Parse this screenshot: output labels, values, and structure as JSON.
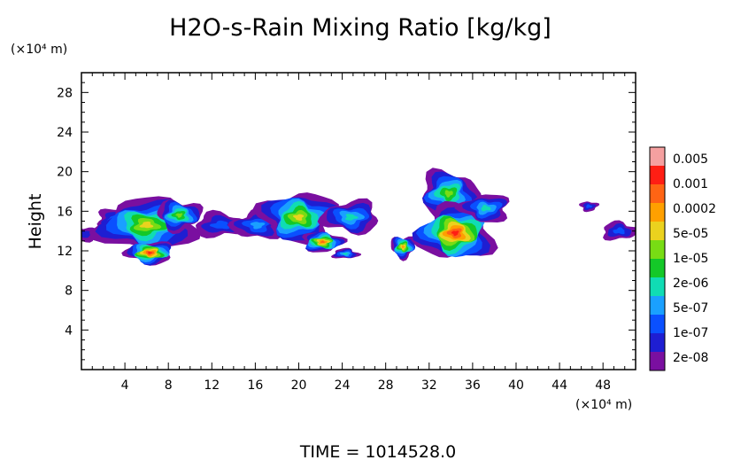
{
  "chart_data": {
    "type": "heatmap",
    "title": "H2O-s-Rain Mixing Ratio [kg/kg]",
    "ylabel": "Height",
    "x_unit": "(×10⁴ m)",
    "y_unit": "(×10⁴ m)",
    "xlim": [
      0,
      51
    ],
    "ylim": [
      0,
      30
    ],
    "x_ticks": [
      4,
      8,
      12,
      16,
      20,
      24,
      28,
      32,
      36,
      40,
      44,
      48
    ],
    "y_ticks": [
      4,
      8,
      12,
      16,
      20,
      24,
      28
    ],
    "footer": "TIME = 1014528.0",
    "legend": {
      "colors": [
        "#7a0fa0",
        "#1e1ed2",
        "#0a50ff",
        "#1aa0ff",
        "#10dcb4",
        "#14c828",
        "#78dc14",
        "#ebd21e",
        "#ffa000",
        "#ff6414",
        "#ff1e14",
        "#f5a0a0"
      ],
      "labels": [
        "2e-08",
        "1e-07",
        "5e-07",
        "2e-06",
        "1e-05",
        "5e-05",
        "0.0002",
        "0.001",
        "0.005"
      ]
    },
    "clusters": [
      {
        "cx": 0.4,
        "cy": 13.7,
        "rx": 1.3,
        "ry": 0.7,
        "peak": 1
      },
      {
        "cx": 3.0,
        "cy": 15.2,
        "rx": 1.6,
        "ry": 1.0,
        "peak": 2
      },
      {
        "cx": 6.0,
        "cy": 14.6,
        "rx": 4.3,
        "ry": 2.6,
        "peak": 7
      },
      {
        "cx": 6.3,
        "cy": 11.8,
        "rx": 2.1,
        "ry": 1.1,
        "peak": 10
      },
      {
        "cx": 9.0,
        "cy": 15.6,
        "rx": 2.0,
        "ry": 1.5,
        "peak": 6
      },
      {
        "cx": 12.8,
        "cy": 14.6,
        "rx": 2.4,
        "ry": 1.2,
        "peak": 2
      },
      {
        "cx": 16.2,
        "cy": 14.6,
        "rx": 2.3,
        "ry": 1.4,
        "peak": 3
      },
      {
        "cx": 20.0,
        "cy": 15.4,
        "rx": 3.4,
        "ry": 2.5,
        "peak": 7
      },
      {
        "cx": 22.2,
        "cy": 12.9,
        "rx": 1.8,
        "ry": 1.0,
        "peak": 9
      },
      {
        "cx": 24.3,
        "cy": 11.7,
        "rx": 1.2,
        "ry": 0.5,
        "peak": 4
      },
      {
        "cx": 24.8,
        "cy": 15.4,
        "rx": 2.6,
        "ry": 1.6,
        "peak": 4
      },
      {
        "cx": 29.6,
        "cy": 12.4,
        "rx": 1.1,
        "ry": 1.1,
        "peak": 8
      },
      {
        "cx": 33.8,
        "cy": 17.8,
        "rx": 2.6,
        "ry": 2.2,
        "peak": 6
      },
      {
        "cx": 34.4,
        "cy": 13.8,
        "rx": 3.4,
        "ry": 2.7,
        "peak": 10
      },
      {
        "cx": 37.2,
        "cy": 16.3,
        "rx": 2.2,
        "ry": 1.4,
        "peak": 4
      },
      {
        "cx": 46.7,
        "cy": 16.5,
        "rx": 0.8,
        "ry": 0.5,
        "peak": 2
      },
      {
        "cx": 49.5,
        "cy": 14.0,
        "rx": 1.6,
        "ry": 0.9,
        "peak": 2
      }
    ]
  }
}
